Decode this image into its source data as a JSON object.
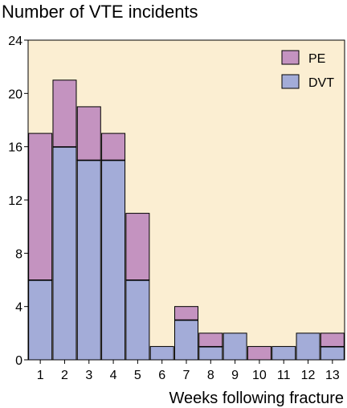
{
  "chart_data": {
    "type": "bar",
    "stacked": true,
    "title": "Number of VTE incidents",
    "xlabel": "Weeks following fracture",
    "ylabel": "",
    "categories": [
      "1",
      "2",
      "3",
      "4",
      "5",
      "6",
      "7",
      "8",
      "9",
      "10",
      "11",
      "12",
      "13"
    ],
    "series": [
      {
        "name": "DVT",
        "values": [
          6,
          16,
          15,
          15,
          6,
          1,
          3,
          1,
          2,
          0,
          1,
          2,
          1
        ],
        "color": "#a3acd8"
      },
      {
        "name": "PE",
        "values": [
          11,
          5,
          4,
          2,
          5,
          0,
          1,
          1,
          0,
          1,
          0,
          0,
          1
        ],
        "color": "#c493c0"
      }
    ],
    "ylim": [
      0,
      24
    ],
    "yticks": [
      "0",
      "4",
      "8",
      "12",
      "16",
      "20",
      "24"
    ],
    "grid": false,
    "legend_position": "top-right",
    "plot_background": "#fbeed2"
  }
}
